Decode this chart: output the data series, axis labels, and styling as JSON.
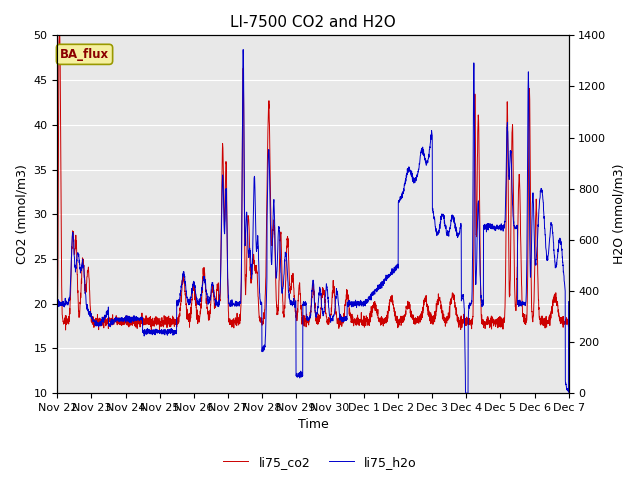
{
  "title": "LI-7500 CO2 and H2O",
  "xlabel": "Time",
  "ylabel_left": "CO2 (mmol/m3)",
  "ylabel_right": "H2O (mmol/m3)",
  "ylim_left": [
    10,
    50
  ],
  "ylim_right": [
    0,
    1400
  ],
  "yticks_left": [
    10,
    15,
    20,
    25,
    30,
    35,
    40,
    45,
    50
  ],
  "yticks_right": [
    0,
    200,
    400,
    600,
    800,
    1000,
    1200,
    1400
  ],
  "co2_color": "#cc0000",
  "h2o_color": "#0000cc",
  "background_color": "#e8e8e8",
  "legend_co2": "li75_co2",
  "legend_h2o": "li75_h2o",
  "annotation_text": "BA_flux",
  "num_points": 3000,
  "x_start_days": 0,
  "x_end_days": 15.0,
  "xtick_labels": [
    "Nov 22",
    "Nov 23",
    "Nov 24",
    "Nov 25",
    "Nov 26",
    "Nov 27",
    "Nov 28",
    "Nov 29",
    "Nov 30",
    "Dec 1",
    "Dec 2",
    "Dec 3",
    "Dec 4",
    "Dec 5",
    "Dec 6",
    "Dec 7"
  ],
  "xtick_positions": [
    0,
    1,
    2,
    3,
    4,
    5,
    6,
    7,
    8,
    9,
    10,
    11,
    12,
    13,
    14,
    15
  ],
  "title_fontsize": 11,
  "axis_label_fontsize": 9,
  "tick_fontsize": 8,
  "line_width": 0.7
}
